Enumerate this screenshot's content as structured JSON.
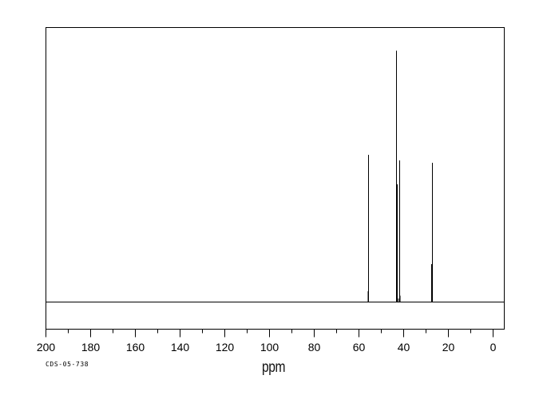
{
  "figure": {
    "background_color": "#ffffff",
    "line_color": "#000000"
  },
  "chart_data": {
    "type": "line",
    "subtype": "nmr-stick-spectrum",
    "xlabel": "ppm",
    "ylabel": "",
    "annotation": "CDS-05-738",
    "grid": false,
    "legend": false,
    "x_axis": {
      "left_ppm": 200,
      "right_ppm": -5,
      "major_tick_step": 20,
      "minor_tick_step": 10,
      "major_ticks": [
        200,
        180,
        160,
        140,
        120,
        100,
        80,
        60,
        40,
        20,
        0
      ],
      "minor_ticks": [
        190,
        170,
        150,
        130,
        110,
        90,
        70,
        50,
        30,
        10
      ],
      "tick_labels": [
        "200",
        "180",
        "160",
        "140",
        "120",
        "100",
        "80",
        "60",
        "40",
        "20",
        "0"
      ]
    },
    "y_axis": {
      "visible": false,
      "max_rel_intensity": 1.0
    },
    "peaks": [
      {
        "ppm": 55.9,
        "rel_height": 0.043
      },
      {
        "ppm": 55.65,
        "rel_height": 0.586
      },
      {
        "ppm": 43.2,
        "rel_height": 1.0
      },
      {
        "ppm": 42.9,
        "rel_height": 0.468
      },
      {
        "ppm": 42.3,
        "rel_height": 0.015
      },
      {
        "ppm": 41.8,
        "rel_height": 0.563
      },
      {
        "ppm": 41.55,
        "rel_height": 0.025
      },
      {
        "ppm": 27.45,
        "rel_height": 0.151
      },
      {
        "ppm": 27.2,
        "rel_height": 0.554
      }
    ]
  }
}
